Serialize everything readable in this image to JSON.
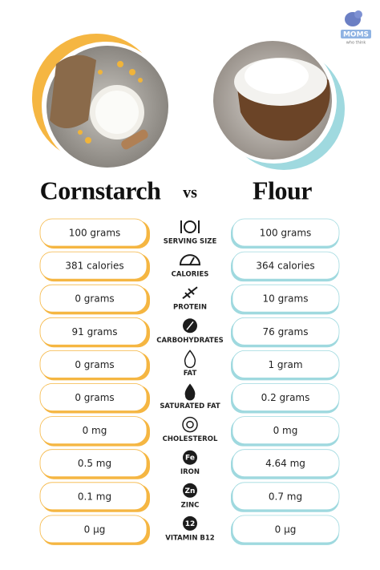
{
  "logo": {
    "name": "MOMS",
    "tagline": "who think"
  },
  "title": {
    "left": "Cornstarch",
    "vs": "vs",
    "right": "Flour"
  },
  "rows": [
    {
      "label": "SERVING SIZE",
      "left": "100 grams",
      "right": "100 grams"
    },
    {
      "label": "CALORIES",
      "left": "381 calories",
      "right": "364 calories"
    },
    {
      "label": "PROTEIN",
      "left": "0 grams",
      "right": "10 grams"
    },
    {
      "label": "CARBOHYDRATES",
      "left": "91 grams",
      "right": "76 grams"
    },
    {
      "label": "FAT",
      "left": "0 grams",
      "right": "1 gram"
    },
    {
      "label": "SATURATED FAT",
      "left": "0 grams",
      "right": "0.2 grams"
    },
    {
      "label": "CHOLESTEROL",
      "left": "0 mg",
      "right": "0 mg"
    },
    {
      "label": "IRON",
      "icon": "Fe",
      "left": "0.5 mg",
      "right": "4.64 mg"
    },
    {
      "label": "ZINC",
      "icon": "Zn",
      "left": "0.1 mg",
      "right": "0.7 mg"
    },
    {
      "label": "VITAMIN B12",
      "icon": "12",
      "left": "0 µg",
      "right": "0 µg"
    }
  ]
}
